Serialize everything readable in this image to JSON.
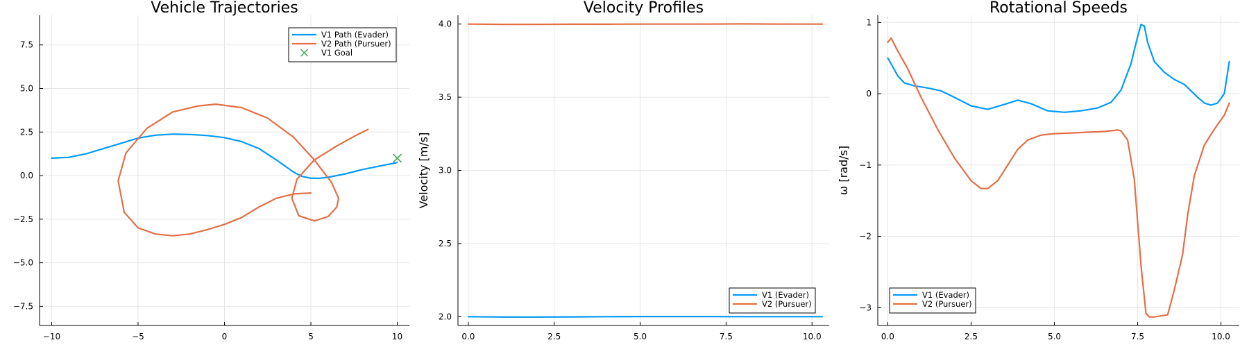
{
  "colors": {
    "v1": "#009af9",
    "v2": "#e26f46",
    "goal": "#3ea44e",
    "grid": "#e6e6e6",
    "axis": "#000000"
  },
  "chart_data": [
    {
      "type": "line",
      "title": "Vehicle Trajectories",
      "xlabel": "",
      "ylabel": "",
      "xlim": [
        -10.7,
        10.7
      ],
      "ylim": [
        -8.6,
        9.2
      ],
      "xticks": [
        -10,
        -5,
        0,
        5,
        10
      ],
      "xtick_labels": [
        "−10",
        "−5",
        "0",
        "5",
        "10"
      ],
      "yticks": [
        -7.5,
        -5.0,
        -2.5,
        0.0,
        2.5,
        5.0,
        7.5
      ],
      "ytick_labels": [
        "−7.5",
        "−5.0",
        "−2.5",
        "0.0",
        "2.5",
        "5.0",
        "7.5"
      ],
      "grid": true,
      "legend_position": "top-right",
      "series": [
        {
          "name": "V1 Path (Evader)",
          "color": "#009af9",
          "x": [
            -10,
            -9,
            -8,
            -7,
            -6,
            -5,
            -4,
            -3,
            -2,
            -1,
            0,
            1,
            2,
            3,
            3.5,
            4,
            4.5,
            5,
            5.5,
            6,
            7,
            8,
            9,
            10
          ],
          "y": [
            1.0,
            1.05,
            1.25,
            1.55,
            1.85,
            2.15,
            2.32,
            2.38,
            2.36,
            2.3,
            2.18,
            1.95,
            1.55,
            0.9,
            0.55,
            0.2,
            -0.05,
            -0.15,
            -0.15,
            -0.1,
            0.1,
            0.35,
            0.55,
            0.75
          ]
        },
        {
          "name": "V2 Path (Pursuer)",
          "color": "#e26f46",
          "x": [
            5,
            4,
            3,
            2,
            1,
            0,
            -1,
            -2,
            -3,
            -4,
            -5,
            -5.8,
            -6.15,
            -5.7,
            -4.5,
            -3,
            -1.5,
            -0.5,
            1,
            2.5,
            4,
            5.2,
            6.2,
            6.6,
            6.5,
            6.0,
            5.2,
            4.3,
            3.9,
            4.2,
            5.2,
            6.5,
            7.5,
            8.3
          ],
          "y": [
            -1.0,
            -1.05,
            -1.3,
            -1.8,
            -2.4,
            -2.8,
            -3.1,
            -3.35,
            -3.45,
            -3.35,
            -3.0,
            -2.1,
            -0.3,
            1.3,
            2.7,
            3.65,
            4.0,
            4.1,
            3.9,
            3.3,
            2.2,
            0.9,
            -0.4,
            -1.3,
            -1.8,
            -2.35,
            -2.6,
            -2.3,
            -1.3,
            -0.2,
            0.9,
            1.7,
            2.25,
            2.65
          ]
        }
      ],
      "markers": [
        {
          "name": "V1 Goal",
          "symbol": "x",
          "x": 10,
          "y": 1.0,
          "color": "#3ea44e"
        }
      ]
    },
    {
      "type": "line",
      "title": "Velocity Profiles",
      "xlabel": "",
      "ylabel": "Velocity [m/s]",
      "xlim": [
        -0.3,
        10.5
      ],
      "ylim": [
        1.94,
        4.06
      ],
      "xticks": [
        0,
        2.5,
        5,
        7.5,
        10
      ],
      "xtick_labels": [
        "0.0",
        "2.5",
        "5.0",
        "7.5",
        "10.0"
      ],
      "yticks": [
        2.0,
        2.5,
        3.0,
        3.5,
        4.0
      ],
      "ytick_labels": [
        "2.0",
        "2.5",
        "3.0",
        "3.5",
        "4.0"
      ],
      "grid": true,
      "legend_position": "bottom-right",
      "series": [
        {
          "name": "V1 (Evader)",
          "color": "#009af9",
          "x": [
            0,
            1,
            2,
            3,
            4,
            5,
            6,
            7,
            8,
            9,
            10,
            10.3
          ],
          "y": [
            2.0,
            1.998,
            1.998,
            1.999,
            2.0,
            2.001,
            2.001,
            2.001,
            2.0,
            2.0,
            2.0,
            2.0
          ]
        },
        {
          "name": "V2 (Pursuer)",
          "color": "#e26f46",
          "x": [
            0,
            1,
            2,
            3,
            4,
            5,
            6,
            7,
            8,
            9,
            10,
            10.3
          ],
          "y": [
            4.0,
            3.998,
            3.998,
            3.999,
            3.999,
            4.0,
            4.0,
            4.0,
            4.001,
            4.0,
            4.0,
            4.0
          ]
        }
      ]
    },
    {
      "type": "line",
      "title": "Rotational Speeds",
      "xlabel": "",
      "ylabel": "ω [rad/s]",
      "xlim": [
        -0.3,
        10.55
      ],
      "ylim": [
        -3.25,
        1.1
      ],
      "xticks": [
        0,
        2.5,
        5,
        7.5,
        10
      ],
      "xtick_labels": [
        "0.0",
        "2.5",
        "5.0",
        "7.5",
        "10.0"
      ],
      "yticks": [
        -3,
        -2,
        -1,
        0,
        1
      ],
      "ytick_labels": [
        "−3",
        "−2",
        "−1",
        "0",
        "1"
      ],
      "grid": true,
      "legend_position": "bottom-left",
      "series": [
        {
          "name": "V1 (Evader)",
          "color": "#009af9",
          "x": [
            0,
            0.1,
            0.3,
            0.5,
            0.8,
            1.2,
            1.6,
            2.0,
            2.5,
            3.0,
            3.5,
            3.9,
            4.3,
            4.8,
            5.3,
            5.8,
            6.3,
            6.7,
            7.0,
            7.3,
            7.5,
            7.6,
            7.7,
            7.8,
            8.0,
            8.3,
            8.6,
            8.9,
            9.1,
            9.3,
            9.5,
            9.7,
            9.9,
            10.1,
            10.25
          ],
          "y": [
            0.5,
            0.42,
            0.25,
            0.15,
            0.11,
            0.08,
            0.04,
            -0.05,
            -0.17,
            -0.22,
            -0.15,
            -0.09,
            -0.14,
            -0.24,
            -0.26,
            -0.24,
            -0.2,
            -0.12,
            0.05,
            0.42,
            0.8,
            0.97,
            0.95,
            0.72,
            0.45,
            0.3,
            0.2,
            0.13,
            0.04,
            -0.05,
            -0.13,
            -0.16,
            -0.13,
            0.0,
            0.45
          ]
        },
        {
          "name": "V2 (Pursuer)",
          "color": "#e26f46",
          "x": [
            0,
            0.1,
            0.3,
            0.6,
            1.0,
            1.5,
            2.0,
            2.5,
            2.8,
            3.0,
            3.3,
            3.6,
            3.9,
            4.2,
            4.6,
            5.0,
            5.5,
            6.0,
            6.5,
            6.9,
            7.0,
            7.2,
            7.4,
            7.6,
            7.75,
            7.85,
            8.0,
            8.4,
            8.6,
            8.85,
            9.0,
            9.2,
            9.5,
            9.8,
            10.1,
            10.25
          ],
          "y": [
            0.72,
            0.78,
            0.6,
            0.35,
            -0.05,
            -0.5,
            -0.9,
            -1.22,
            -1.33,
            -1.33,
            -1.22,
            -1.0,
            -0.78,
            -0.65,
            -0.58,
            -0.56,
            -0.55,
            -0.54,
            -0.53,
            -0.51,
            -0.52,
            -0.65,
            -1.2,
            -2.4,
            -3.08,
            -3.13,
            -3.13,
            -3.1,
            -2.75,
            -2.25,
            -1.7,
            -1.15,
            -0.72,
            -0.5,
            -0.3,
            -0.13
          ]
        }
      ]
    }
  ]
}
